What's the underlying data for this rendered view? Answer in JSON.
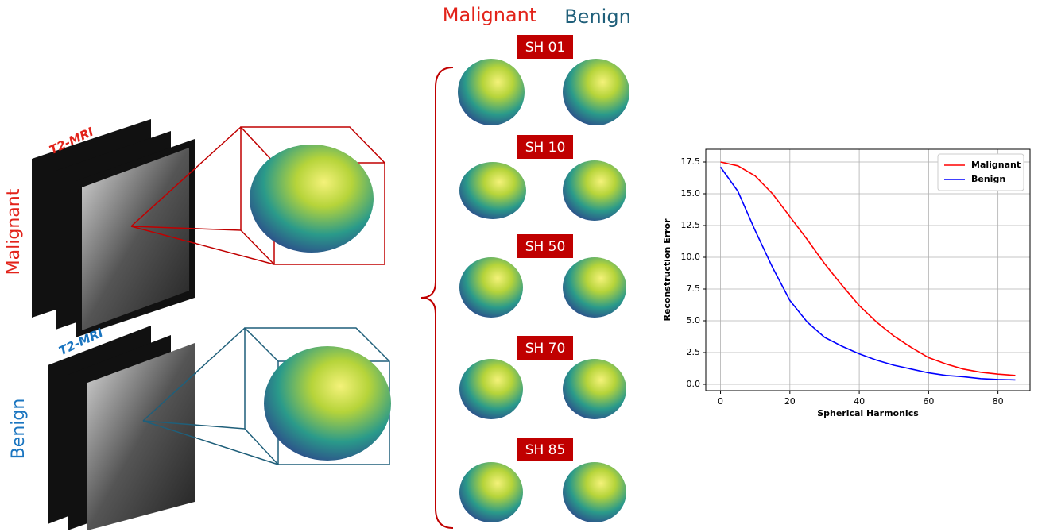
{
  "figure": {
    "header": {
      "malignant": "Malignant",
      "benign": "Benign"
    },
    "sh_labels": [
      "SH 01",
      "SH 10",
      "SH 50",
      "SH 70",
      "SH 85"
    ],
    "left": {
      "malignant_modality": "T2-MRI",
      "benign_modality": "T2-MRI",
      "malignant_label": "Malignant",
      "benign_label": "Benign"
    }
  },
  "chart_data": {
    "type": "line",
    "xlabel": "Spherical Harmonics",
    "ylabel": "Reconstruction Error",
    "x": [
      0,
      5,
      10,
      15,
      20,
      25,
      30,
      35,
      40,
      45,
      50,
      55,
      60,
      65,
      70,
      75,
      80,
      85
    ],
    "series": [
      {
        "name": "Malignant",
        "color": "#ff0000",
        "values": [
          17.5,
          17.2,
          16.4,
          15.0,
          13.2,
          11.4,
          9.5,
          7.8,
          6.2,
          4.9,
          3.8,
          2.9,
          2.1,
          1.6,
          1.2,
          0.95,
          0.8,
          0.7
        ]
      },
      {
        "name": "Benign",
        "color": "#0000ff",
        "values": [
          17.1,
          15.2,
          12.1,
          9.2,
          6.6,
          4.9,
          3.7,
          3.0,
          2.4,
          1.9,
          1.5,
          1.2,
          0.9,
          0.7,
          0.6,
          0.45,
          0.38,
          0.35
        ]
      }
    ],
    "xlim": [
      -4.25,
      89.25
    ],
    "ylim": [
      -0.5,
      18.5
    ],
    "xticks": [
      0,
      20,
      40,
      60,
      80
    ],
    "yticks": [
      {
        "value": 0,
        "label": "0.0"
      },
      {
        "value": 2.5,
        "label": "2.5"
      },
      {
        "value": 5,
        "label": "5.0"
      },
      {
        "value": 7.5,
        "label": "7.5"
      },
      {
        "value": 10,
        "label": "10.0"
      },
      {
        "value": 12.5,
        "label": "12.5"
      },
      {
        "value": 15,
        "label": "15.0"
      },
      {
        "value": 17.5,
        "label": "17.5"
      }
    ],
    "grid": true,
    "legend": "upper right"
  }
}
